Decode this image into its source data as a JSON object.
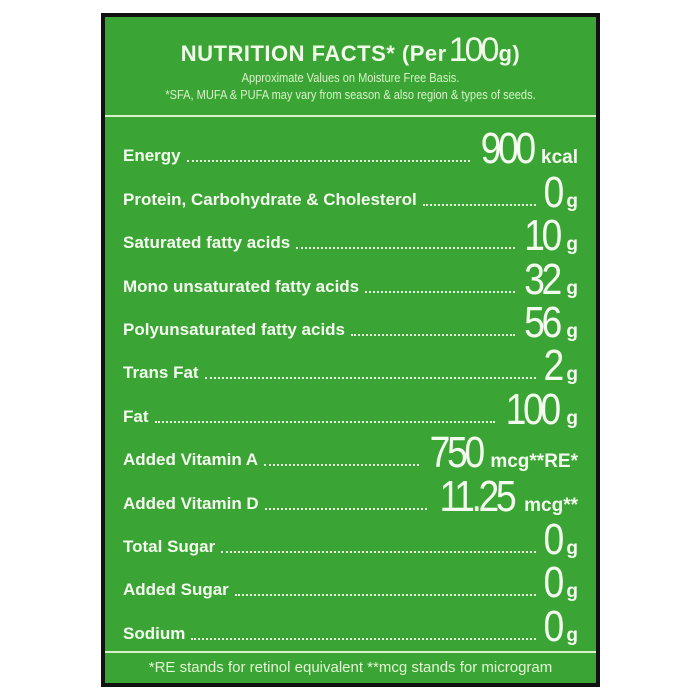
{
  "header": {
    "title_prefix": "NUTRITION FACTS*  (Per",
    "title_amount": "100",
    "title_suffix": "g)",
    "subtitle": "Approximate Values on Moisture Free Basis.",
    "note": "*SFA, MUFA & PUFA may vary from season & also region & types of seeds."
  },
  "rows": [
    {
      "label": "Energy",
      "value": "900",
      "unit": "kcal"
    },
    {
      "label": "Protein, Carbohydrate & Cholesterol",
      "value": "0",
      "unit": "g"
    },
    {
      "label": "Saturated fatty acids",
      "value": "10",
      "unit": "g"
    },
    {
      "label": "Mono unsaturated fatty acids",
      "value": "32",
      "unit": "g"
    },
    {
      "label": "Polyunsaturated fatty acids",
      "value": "56",
      "unit": "g"
    },
    {
      "label": "Trans Fat",
      "value": "2",
      "unit": "g"
    },
    {
      "label": "Fat",
      "value": "100",
      "unit": "g"
    },
    {
      "label": "Added Vitamin A",
      "value": "750",
      "unit": "mcg**RE*"
    },
    {
      "label": "Added Vitamin D",
      "value": "11.25",
      "unit": "mcg**"
    },
    {
      "label": "Total Sugar",
      "value": "0",
      "unit": "g"
    },
    {
      "label": "Added Sugar",
      "value": "0",
      "unit": "g"
    },
    {
      "label": "Sodium",
      "value": "0",
      "unit": "g"
    }
  ],
  "footer": "*RE stands for retinol equivalent **mcg stands for microgram",
  "colors": {
    "background": "#3aa534",
    "text": "#f4fcef",
    "border": "#111111"
  }
}
